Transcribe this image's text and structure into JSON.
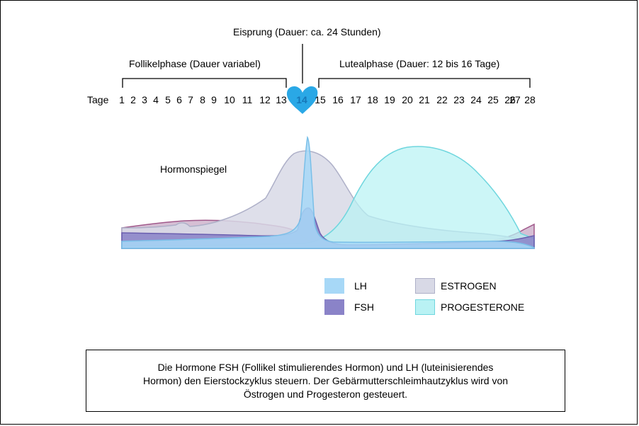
{
  "header": {
    "ovulation": "Eisprung (Dauer: ca. 24 Stunden)",
    "follicular_phase": "Follikelphase (Dauer variabel)",
    "luteal_phase": "Lutealphase (Dauer: 12 bis 16 Tage)"
  },
  "days": {
    "label": "Tage",
    "values": [
      "1",
      "2",
      "3",
      "4",
      "5",
      "6",
      "7",
      "8",
      "9",
      "10",
      "11",
      "12",
      "13",
      "14",
      "15",
      "16",
      "17",
      "18",
      "19",
      "20",
      "21",
      "22",
      "23",
      "24",
      "25",
      "26",
      "27",
      "28"
    ],
    "highlight_day": "14",
    "highlight_color": "#2aa8e6"
  },
  "chart": {
    "label": "Hormonspiegel",
    "icon": "heart-icon"
  },
  "legend": {
    "lh": "LH",
    "fsh": "FSH",
    "estrogen": "ESTROGEN",
    "progesterone": "PROGESTERONE"
  },
  "colors": {
    "lh_fill": "#a7d8f7",
    "lh_stroke": "#79bfe8",
    "fsh_fill": "#8a83c8",
    "fsh_stroke": "#6b5fb0",
    "estrogen_fill": "#d8d9e6",
    "estrogen_stroke": "#aeb0c8",
    "progesterone_fill": "#b9f2f4",
    "progesterone_stroke": "#6fd6de",
    "other_curve": "#a0588a"
  },
  "note": {
    "line1": "Die Hormone FSH (Follikel stimulierendes Hormon) und LH (luteinisierendes",
    "line2": "Hormon) den Eierstockzyklus steuern. Der Gebärmutterschleimhautzyklus wird von",
    "line3": "Östrogen und Progesteron gesteuert."
  }
}
